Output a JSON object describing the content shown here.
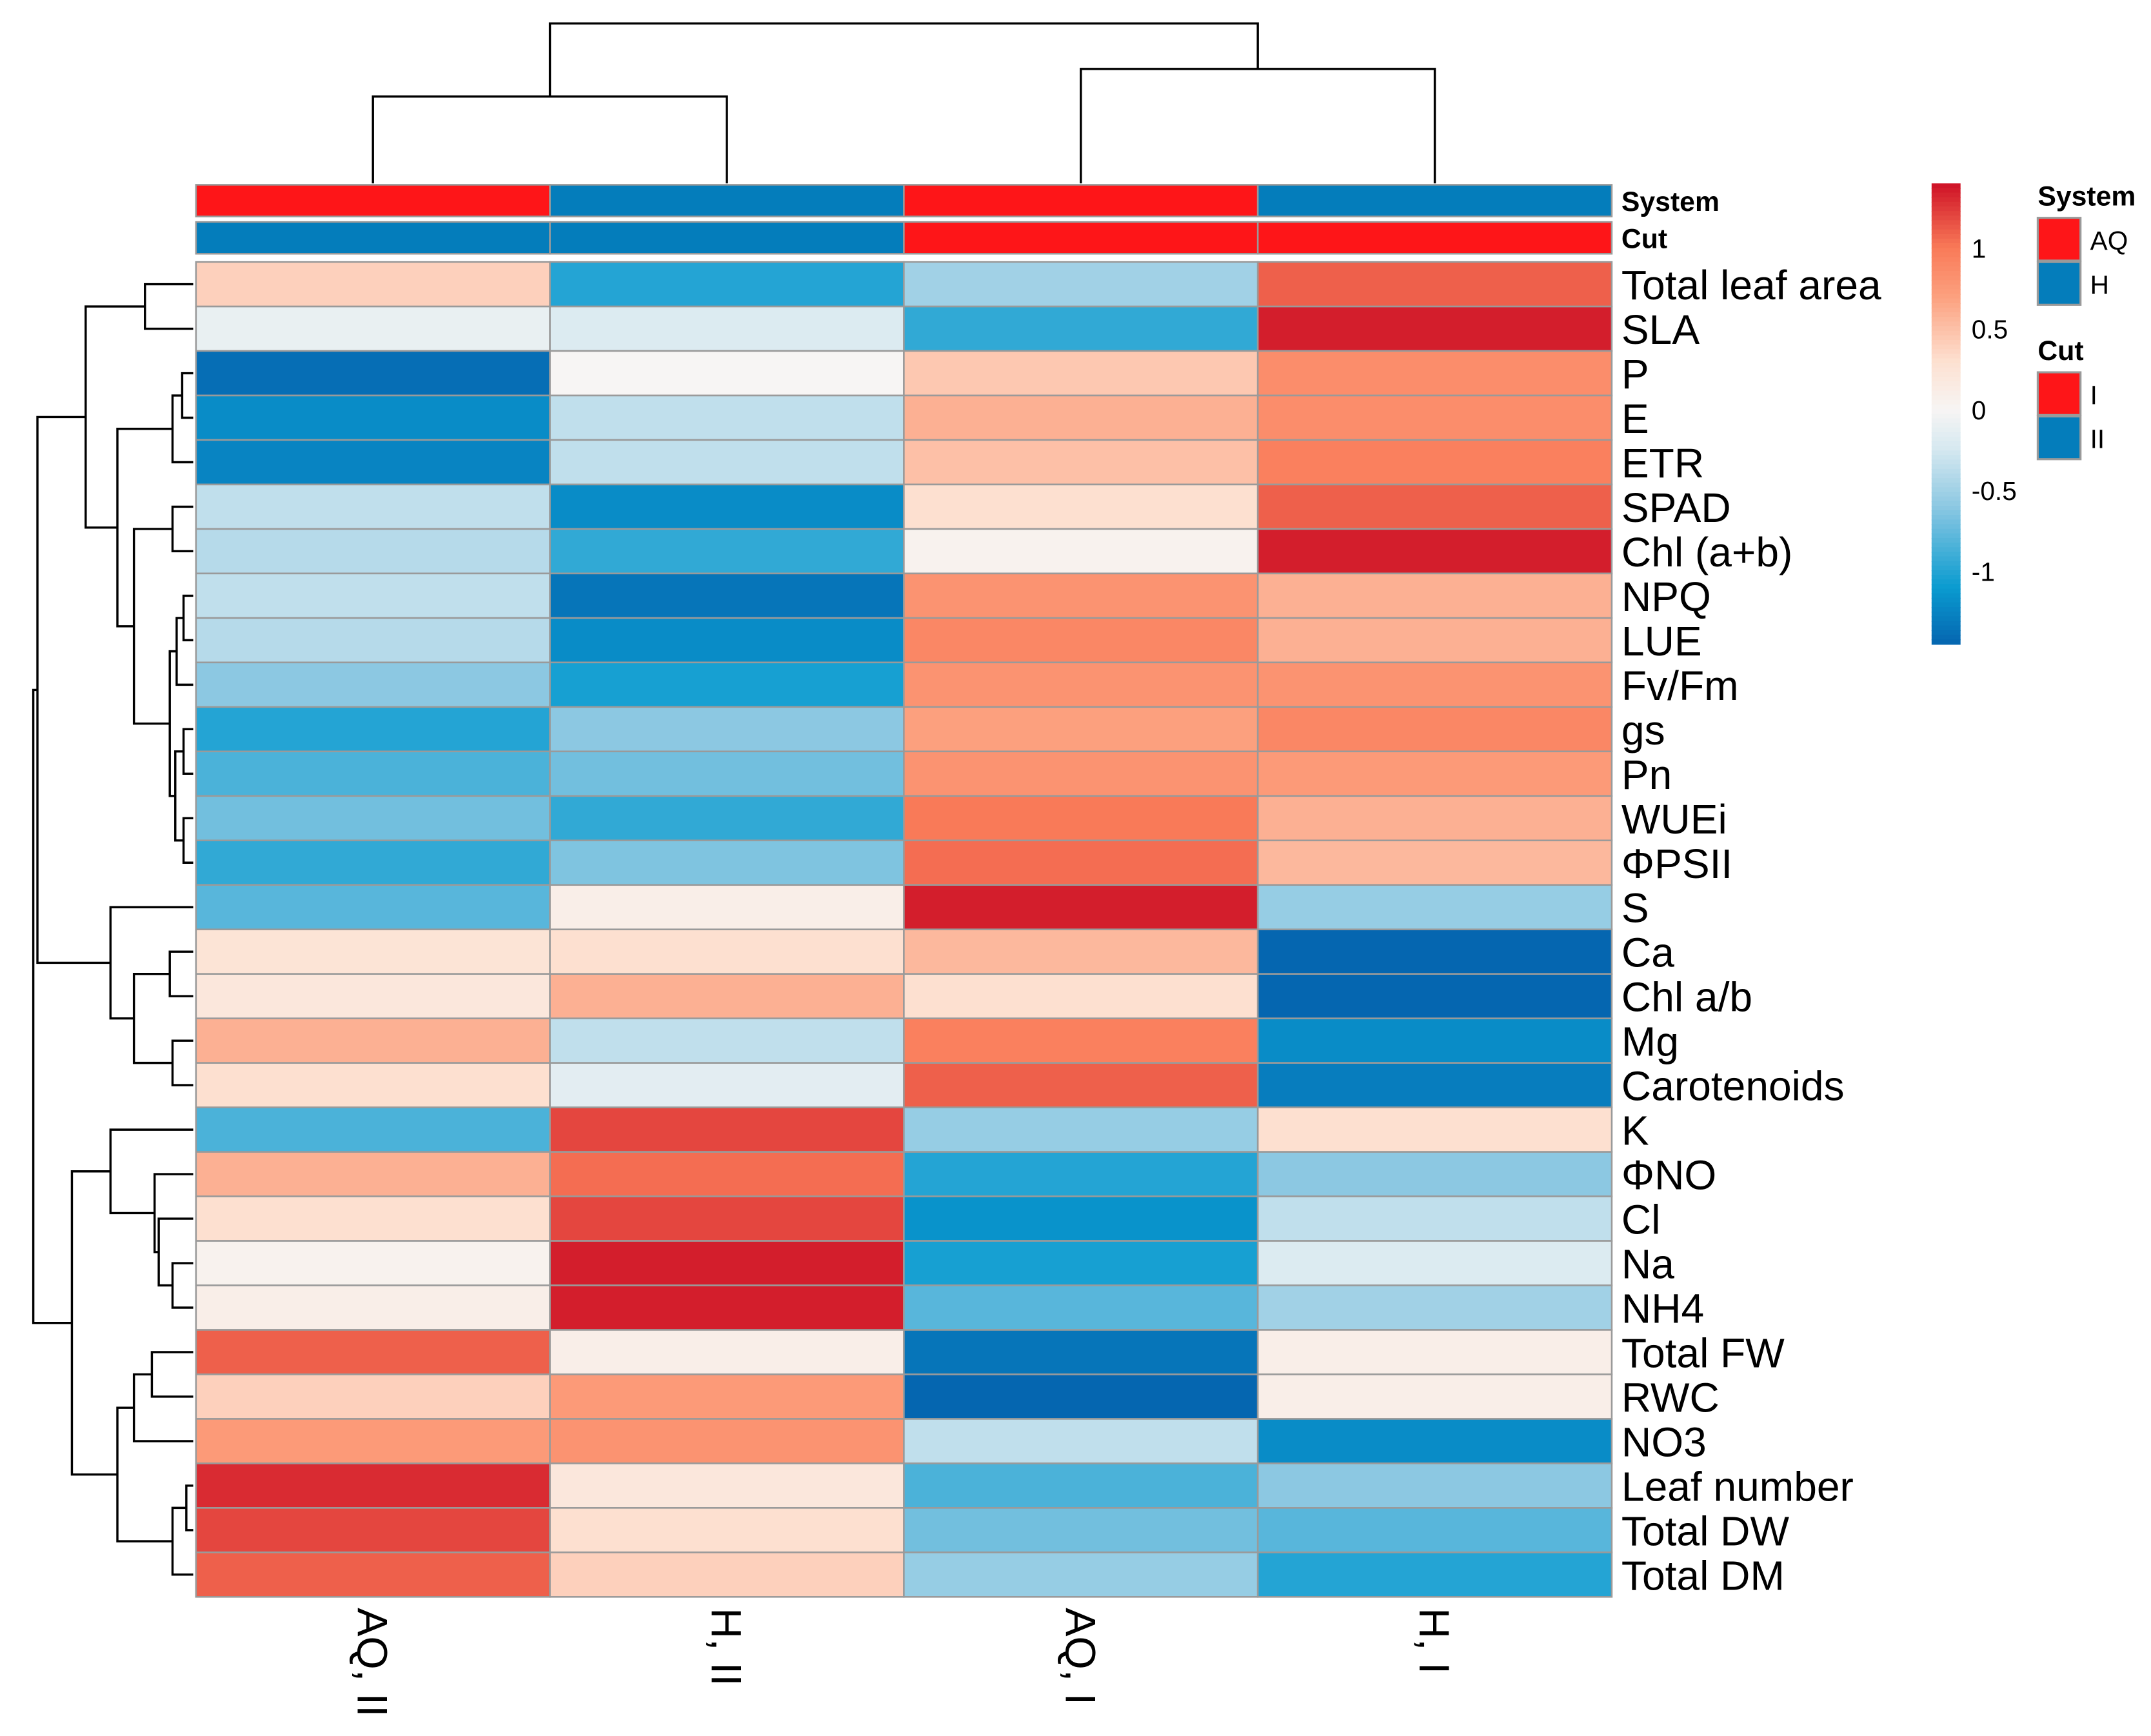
{
  "chart_data": {
    "type": "heatmap",
    "title": "",
    "columns": [
      "AQ, II",
      "H, II",
      "AQ, I",
      "H, I"
    ],
    "rows": [
      "Total leaf area",
      "SLA",
      "P",
      "E",
      "ETR",
      "SPAD",
      "Chl (a+b)",
      "NPQ",
      "LUE",
      "Fv/Fm",
      "gs",
      "Pn",
      "WUEi",
      "ΦPSII",
      "S",
      "Ca",
      "Chl a/b",
      "Mg",
      "Carotenoids",
      "K",
      "ΦNO",
      "Cl",
      "Na",
      "NH4",
      "Total FW",
      "RWC",
      "NO3",
      "Leaf number",
      "Total  DW",
      "Total DM"
    ],
    "values": [
      [
        0.4,
        -1.0,
        -0.5,
        1.1
      ],
      [
        -0.1,
        -0.2,
        -0.95,
        1.35
      ],
      [
        -1.4,
        0.0,
        0.45,
        0.85
      ],
      [
        -1.2,
        -0.35,
        0.6,
        0.85
      ],
      [
        -1.25,
        -0.35,
        0.5,
        0.95
      ],
      [
        -0.35,
        -1.2,
        0.3,
        1.1
      ],
      [
        -0.4,
        -0.95,
        0.05,
        1.35
      ],
      [
        -0.35,
        -1.35,
        0.8,
        0.6
      ],
      [
        -0.4,
        -1.2,
        0.9,
        0.6
      ],
      [
        -0.6,
        -1.05,
        0.8,
        0.8
      ],
      [
        -1.0,
        -0.6,
        0.7,
        0.9
      ],
      [
        -0.85,
        -0.7,
        0.8,
        0.75
      ],
      [
        -0.7,
        -0.95,
        1.0,
        0.6
      ],
      [
        -0.95,
        -0.65,
        1.05,
        0.55
      ],
      [
        -0.8,
        0.1,
        1.35,
        -0.55
      ],
      [
        0.25,
        0.3,
        0.55,
        -1.45
      ],
      [
        0.2,
        0.6,
        0.3,
        -1.45
      ],
      [
        0.6,
        -0.35,
        0.95,
        -1.2
      ],
      [
        0.3,
        -0.15,
        1.1,
        -1.3
      ],
      [
        -0.85,
        1.2,
        -0.55,
        0.3
      ],
      [
        0.6,
        1.05,
        -1.0,
        -0.6
      ],
      [
        0.3,
        1.2,
        -1.15,
        -0.35
      ],
      [
        0.05,
        1.35,
        -1.05,
        -0.2
      ],
      [
        0.1,
        1.35,
        -0.8,
        -0.5
      ],
      [
        1.1,
        0.1,
        -1.35,
        0.1
      ],
      [
        0.4,
        0.75,
        -1.45,
        0.1
      ],
      [
        0.75,
        0.8,
        -0.35,
        -1.2
      ],
      [
        1.3,
        0.2,
        -0.85,
        -0.6
      ],
      [
        1.2,
        0.3,
        -0.7,
        -0.8
      ],
      [
        1.1,
        0.4,
        -0.55,
        -1.0
      ]
    ],
    "color_range": [
      -1.45,
      1.4
    ],
    "colorbar_ticks": [
      1,
      0.5,
      0,
      -0.5,
      -1
    ],
    "colorbar_tick_labels": [
      "1",
      "0.5",
      "0",
      "-0.5",
      "-1"
    ],
    "annotations": {
      "System": {
        "label": "System",
        "values": [
          "AQ",
          "H",
          "AQ",
          "H"
        ],
        "levels": [
          "AQ",
          "H"
        ],
        "colors": {
          "AQ": "#fe1518",
          "H": "#047dbb"
        }
      },
      "Cut": {
        "label": "Cut",
        "values": [
          "II",
          "II",
          "I",
          "I"
        ],
        "levels": [
          "I",
          "II"
        ],
        "colors": {
          "I": "#fe1518",
          "II": "#047dbb"
        }
      }
    },
    "legend_placement": "right"
  }
}
